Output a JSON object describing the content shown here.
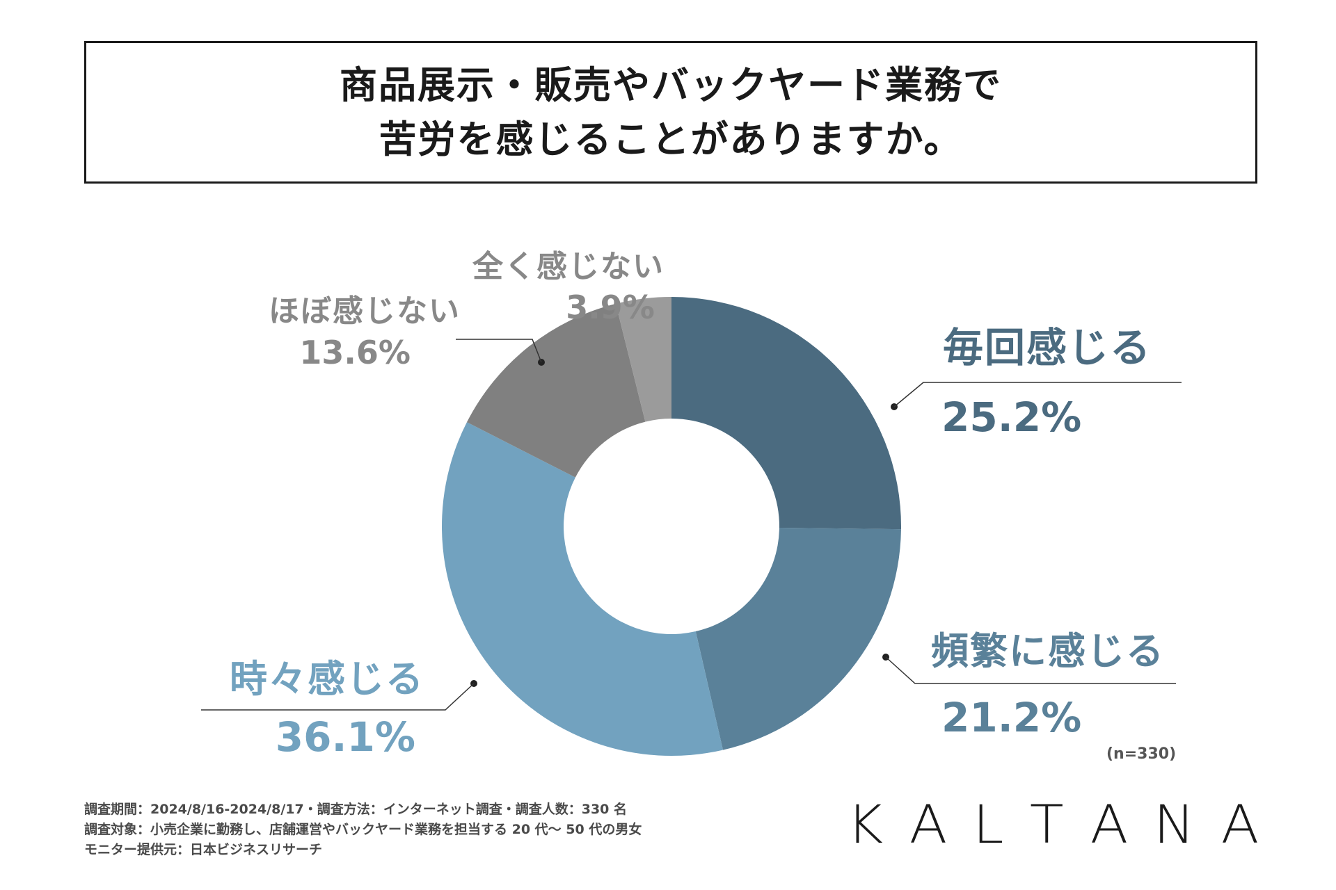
{
  "header": {
    "title_line1": "商品展示・販売やバックヤード業務で",
    "title_line2": "苦労を感じることがありますか。"
  },
  "chart_data": {
    "type": "pie",
    "variant": "donut",
    "title": "商品展示・販売やバックヤード業務で苦労を感じることがありますか。",
    "unit": "%",
    "series": [
      {
        "name": "毎回感じる",
        "value": 25.2,
        "label": "25.2%",
        "color": "#4b6b80"
      },
      {
        "name": "頻繁に感じる",
        "value": 21.2,
        "label": "21.2%",
        "color": "#5a8199"
      },
      {
        "name": "時々感じる",
        "value": 36.1,
        "label": "36.1%",
        "color": "#72a2bf"
      },
      {
        "name": "ほぼ感じない",
        "value": 13.6,
        "label": "13.6%",
        "color": "#808080"
      },
      {
        "name": "全く感じない",
        "value": 3.9,
        "label": "3.9%",
        "color": "#9b9b9b"
      }
    ],
    "sample_size": "(n=330)"
  },
  "footer": {
    "line1": "調査期間：2024/8/16-2024/8/17・調査方法：インターネット調査・調査人数：330 名",
    "line2": "調査対象：小売企業に勤務し、店舗運営やバックヤード業務を担当する 20 代〜 50 代の男女",
    "line3": "モニター提供元：日本ビジネスリサーチ"
  },
  "brand": {
    "logo_text": "KALTANA"
  }
}
